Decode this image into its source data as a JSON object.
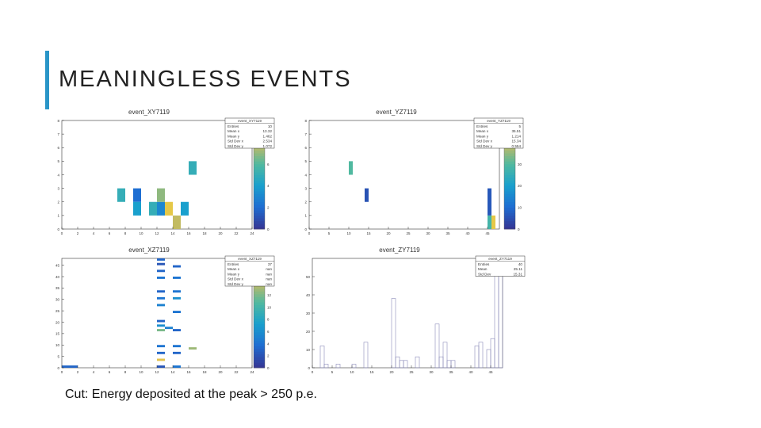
{
  "slide": {
    "title": "MEANINGLESS EVENTS",
    "caption": "Cut: Energy deposited at the peak > 250 p.e.",
    "accent_color": "#2a95c7"
  },
  "chart_data": [
    {
      "type": "heatmap",
      "title": "event_XY7119",
      "stats_title": "event_XY7119",
      "stats": [
        [
          "Entries",
          "10"
        ],
        [
          "Mean x",
          "13.32"
        ],
        [
          "Mean y",
          "1.462"
        ],
        [
          "Std Dev x",
          "2.534"
        ],
        [
          "Std Dev y",
          "1.072"
        ]
      ],
      "xlim": [
        0,
        24
      ],
      "ylim": [
        0,
        8
      ],
      "x_ticks": [
        "0",
        "2",
        "4",
        "6",
        "8",
        "10",
        "12",
        "14",
        "16",
        "18",
        "20",
        "22",
        "24"
      ],
      "y_ticks": [
        "0",
        "1",
        "2",
        "3",
        "4",
        "5",
        "6",
        "7",
        "8"
      ],
      "palette_range": [
        0,
        10
      ],
      "palette_ticks": [
        "0",
        "2",
        "4",
        "6",
        "8",
        "10"
      ],
      "cells": [
        {
          "x": 7,
          "y": 2,
          "w": 1,
          "h": 1,
          "v": 5
        },
        {
          "x": 9,
          "y": 2,
          "w": 1,
          "h": 1,
          "v": 2
        },
        {
          "x": 9,
          "y": 1,
          "w": 1,
          "h": 1,
          "v": 4
        },
        {
          "x": 11,
          "y": 1,
          "w": 1,
          "h": 1,
          "v": 5
        },
        {
          "x": 12,
          "y": 1,
          "w": 1,
          "h": 1,
          "v": 3
        },
        {
          "x": 12,
          "y": 2,
          "w": 1,
          "h": 1,
          "v": 7
        },
        {
          "x": 13,
          "y": 1,
          "w": 1,
          "h": 1,
          "v": 9
        },
        {
          "x": 14,
          "y": 0,
          "w": 1,
          "h": 1,
          "v": 8
        },
        {
          "x": 15,
          "y": 1,
          "w": 1,
          "h": 1,
          "v": 4
        },
        {
          "x": 16,
          "y": 4,
          "w": 1,
          "h": 1,
          "v": 5
        }
      ]
    },
    {
      "type": "heatmap",
      "title": "event_YZ7119",
      "stats_title": "event_YZ7119",
      "stats": [
        [
          "Entries",
          "5"
        ],
        [
          "Mean x",
          "35.51"
        ],
        [
          "Mean y",
          "1.214"
        ],
        [
          "Std Dev x",
          "15.34"
        ],
        [
          "Std Dev y",
          "0.554"
        ]
      ],
      "xlim": [
        0,
        48
      ],
      "ylim": [
        0,
        8
      ],
      "x_ticks": [
        "0",
        "5",
        "10",
        "15",
        "20",
        "25",
        "30",
        "35",
        "40",
        "45"
      ],
      "y_ticks": [
        "0",
        "1",
        "2",
        "3",
        "4",
        "5",
        "6",
        "7",
        "8"
      ],
      "palette_range": [
        0,
        50
      ],
      "palette_ticks": [
        "0",
        "10",
        "20",
        "30",
        "40",
        "50"
      ],
      "cells": [
        {
          "x": 10,
          "y": 4,
          "w": 1,
          "h": 1,
          "v": 30
        },
        {
          "x": 14,
          "y": 2,
          "w": 1,
          "h": 1,
          "v": 5
        },
        {
          "x": 45,
          "y": 0,
          "w": 1,
          "h": 1,
          "v": 28
        },
        {
          "x": 45,
          "y": 1,
          "w": 1,
          "h": 2,
          "v": 6
        },
        {
          "x": 46,
          "y": 0,
          "w": 1,
          "h": 1,
          "v": 45
        }
      ]
    },
    {
      "type": "heatmap",
      "title": "event_XZ7119",
      "stats_title": "event_XZ7119",
      "stats": [
        [
          "Entries",
          "37"
        ],
        [
          "Mean x",
          "nan"
        ],
        [
          "Mean y",
          "nan"
        ],
        [
          "Std Dev x",
          "nan"
        ],
        [
          "Std Dev y",
          "nan"
        ]
      ],
      "xlim": [
        0,
        24
      ],
      "ylim": [
        0,
        48
      ],
      "x_ticks": [
        "0",
        "2",
        "4",
        "6",
        "8",
        "10",
        "12",
        "14",
        "16",
        "18",
        "20",
        "22",
        "24"
      ],
      "y_ticks": [
        "0",
        "5",
        "10",
        "15",
        "20",
        "25",
        "30",
        "35",
        "40",
        "45"
      ],
      "palette_range": [
        0,
        18
      ],
      "palette_ticks": [
        "0",
        "2",
        "4",
        "6",
        "8",
        "10",
        "12",
        "14",
        "16",
        "18"
      ],
      "cells": [
        {
          "x": 0,
          "y": 0,
          "w": 2,
          "h": 1,
          "v": 3
        },
        {
          "x": 12,
          "y": 0,
          "w": 1,
          "h": 1,
          "v": 2
        },
        {
          "x": 12,
          "y": 3,
          "w": 1,
          "h": 1,
          "v": 16
        },
        {
          "x": 12,
          "y": 6,
          "w": 1,
          "h": 1,
          "v": 3
        },
        {
          "x": 12,
          "y": 9,
          "w": 1,
          "h": 1,
          "v": 4
        },
        {
          "x": 12,
          "y": 16,
          "w": 1,
          "h": 1,
          "v": 12
        },
        {
          "x": 12,
          "y": 18,
          "w": 1,
          "h": 1,
          "v": 6
        },
        {
          "x": 12,
          "y": 20,
          "w": 1,
          "h": 1,
          "v": 3
        },
        {
          "x": 12,
          "y": 27,
          "w": 1,
          "h": 1,
          "v": 5
        },
        {
          "x": 12,
          "y": 30,
          "w": 1,
          "h": 1,
          "v": 4
        },
        {
          "x": 12,
          "y": 33,
          "w": 1,
          "h": 1,
          "v": 3
        },
        {
          "x": 12,
          "y": 39,
          "w": 1,
          "h": 1,
          "v": 4
        },
        {
          "x": 12,
          "y": 42,
          "w": 1,
          "h": 1,
          "v": 3
        },
        {
          "x": 12,
          "y": 45,
          "w": 1,
          "h": 1,
          "v": 2
        },
        {
          "x": 12,
          "y": 47,
          "w": 1,
          "h": 1,
          "v": 3
        },
        {
          "x": 13,
          "y": 17,
          "w": 1,
          "h": 1,
          "v": 5
        },
        {
          "x": 14,
          "y": 0,
          "w": 1,
          "h": 1,
          "v": 4
        },
        {
          "x": 14,
          "y": 6,
          "w": 1,
          "h": 1,
          "v": 3
        },
        {
          "x": 14,
          "y": 9,
          "w": 1,
          "h": 1,
          "v": 4
        },
        {
          "x": 14,
          "y": 16,
          "w": 1,
          "h": 1,
          "v": 3
        },
        {
          "x": 14,
          "y": 24,
          "w": 1,
          "h": 1,
          "v": 4
        },
        {
          "x": 14,
          "y": 30,
          "w": 1,
          "h": 1,
          "v": 6
        },
        {
          "x": 14,
          "y": 33,
          "w": 1,
          "h": 1,
          "v": 4
        },
        {
          "x": 14,
          "y": 39,
          "w": 1,
          "h": 1,
          "v": 4
        },
        {
          "x": 14,
          "y": 44,
          "w": 1,
          "h": 1,
          "v": 3
        },
        {
          "x": 16,
          "y": 8,
          "w": 1,
          "h": 1,
          "v": 13
        }
      ]
    },
    {
      "type": "bar",
      "title": "event_ZY7119",
      "stats_title": "event_ZY7119",
      "stats": [
        [
          "Entries",
          "40"
        ],
        [
          "Mean",
          "25.11"
        ],
        [
          "Std Dev",
          "15.31"
        ]
      ],
      "xlim": [
        0,
        48
      ],
      "ylim": [
        0,
        60
      ],
      "x_ticks": [
        "0",
        "5",
        "10",
        "15",
        "20",
        "25",
        "30",
        "35",
        "40",
        "45"
      ],
      "y_ticks": [
        "0",
        "10",
        "20",
        "30",
        "40",
        "50"
      ],
      "values": [
        0,
        0,
        12,
        2,
        0,
        0,
        2,
        0,
        0,
        0,
        2,
        0,
        0,
        14,
        0,
        0,
        0,
        0,
        0,
        0,
        38,
        6,
        4,
        4,
        0,
        0,
        6,
        0,
        0,
        0,
        0,
        24,
        6,
        14,
        4,
        4,
        0,
        0,
        0,
        0,
        0,
        12,
        14,
        0,
        10,
        16,
        56,
        60
      ]
    }
  ]
}
